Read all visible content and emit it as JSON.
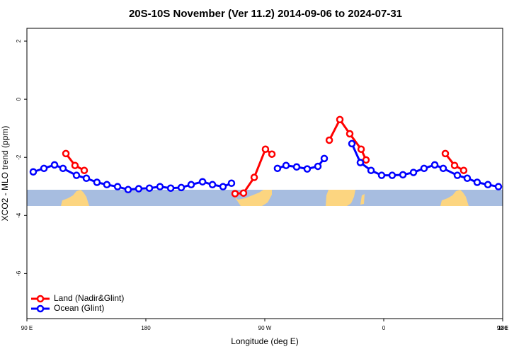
{
  "chart_data": {
    "type": "line",
    "title": "20S-10S November (Ver 11.2)   2014-09-06 to 2024-07-31",
    "x_label": "Longitude (deg E)",
    "y_label": "XCO2 - MLO trend (ppm)",
    "xlim": [
      90,
      450
    ],
    "ylim": [
      -7.55,
      2.44
    ],
    "xticks": [
      {
        "value": 90,
        "label": "90 E"
      },
      {
        "value": 180,
        "label": "180"
      },
      {
        "value": 270,
        "label": "90 W"
      },
      {
        "value": 360,
        "label": "0"
      },
      {
        "value": 450,
        "label": "90 E"
      },
      {
        "value": 540,
        "label": "180"
      }
    ],
    "yticks": [
      2,
      0,
      -2,
      -4,
      -6
    ],
    "legend_position": "bottom-left",
    "series": [
      {
        "name": "Land (Nadir&Glint)",
        "color": "#ff0000",
        "x": [
          119.5,
          126.4,
          133.4,
          null,
          247.5,
          253.9,
          262,
          270.5,
          275.4,
          null,
          318.8,
          326.8,
          334.3,
          342.9,
          346.6,
          null,
          406.6,
          413.6,
          420.5
        ],
        "values": [
          -1.87,
          -2.28,
          -2.45,
          null,
          -3.25,
          -3.23,
          -2.69,
          -1.72,
          -1.89,
          null,
          -1.41,
          -0.7,
          -1.19,
          -1.72,
          -2.09,
          null,
          -1.87,
          -2.28,
          -2.45
        ]
      },
      {
        "name": "Ocean (Glint)",
        "color": "#0000ff",
        "x": [
          94.8,
          102.9,
          110.9,
          117.3,
          127.5,
          135,
          143,
          150.5,
          158.6,
          166.6,
          174.6,
          182.7,
          190.7,
          198.8,
          206.8,
          214.3,
          222.9,
          230.4,
          238.4,
          244.8,
          null,
          279.6,
          286.1,
          294.1,
          302.1,
          310.2,
          315,
          null,
          335.9,
          342.3,
          350.4,
          358.4,
          366.4,
          374.5,
          382.5,
          390.5,
          398.6,
          405,
          415.7,
          423.2,
          430.7,
          438.8,
          446.8
        ],
        "values": [
          -2.5,
          -2.38,
          -2.26,
          -2.38,
          -2.62,
          -2.72,
          -2.86,
          -2.94,
          -3.01,
          -3.11,
          -3.08,
          -3.06,
          -3.01,
          -3.06,
          -3.04,
          -2.94,
          -2.84,
          -2.94,
          -3.01,
          -2.89,
          null,
          -2.38,
          -2.28,
          -2.33,
          -2.4,
          -2.31,
          -2.04,
          null,
          -1.53,
          -2.18,
          -2.45,
          -2.62,
          -2.62,
          -2.6,
          -2.52,
          -2.38,
          -2.26,
          -2.38,
          -2.62,
          -2.72,
          -2.86,
          -2.94,
          -3.01
        ]
      }
    ]
  }
}
